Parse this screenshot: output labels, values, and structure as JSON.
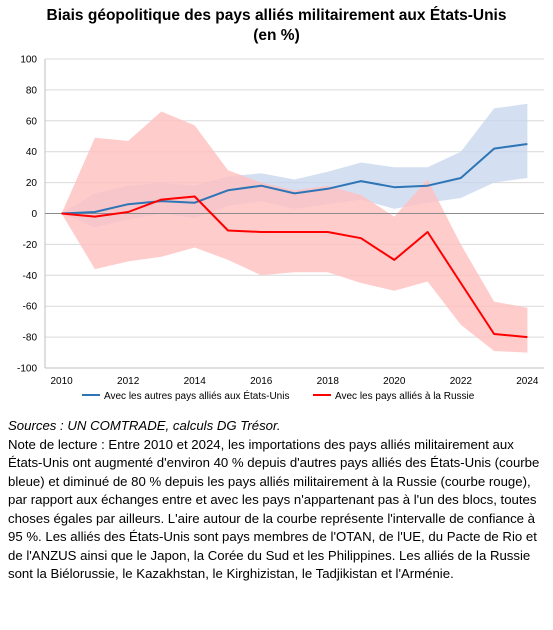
{
  "chart_data": {
    "type": "line",
    "title": "Biais géopolitique des pays alliés militairement aux États-Unis",
    "subtitle": "(en %)",
    "x": [
      2010,
      2011,
      2012,
      2013,
      2014,
      2015,
      2016,
      2017,
      2018,
      2019,
      2020,
      2021,
      2022,
      2023,
      2024
    ],
    "xticks": [
      2010,
      2012,
      2014,
      2016,
      2018,
      2020,
      2022,
      2024
    ],
    "yticks": [
      -100,
      -80,
      -60,
      -40,
      -20,
      0,
      20,
      40,
      60,
      80,
      100
    ],
    "xlim": [
      2009.5,
      2024.5
    ],
    "ylim": [
      -100,
      100
    ],
    "grid": true,
    "legend_position": "bottom",
    "series": [
      {
        "name": "Avec les autres pays alliés aux États-Unis",
        "color": "#2E75B6",
        "band_color": "#C5D5EE",
        "values": [
          0,
          1,
          6,
          8,
          7,
          15,
          18,
          13,
          16,
          21,
          17,
          18,
          23,
          42,
          45
        ],
        "upper": [
          0,
          13,
          18,
          20,
          18,
          24,
          26,
          22,
          27,
          33,
          30,
          30,
          40,
          68,
          71
        ],
        "lower": [
          0,
          -9,
          -4,
          0,
          -3,
          5,
          8,
          3,
          6,
          9,
          3,
          7,
          10,
          20,
          23
        ]
      },
      {
        "name": "Avec les pays alliés à la Russie",
        "color": "#FF0000",
        "band_color": "#FFBFBF",
        "values": [
          0,
          -2,
          1,
          9,
          11,
          -11,
          -12,
          -12,
          -12,
          -16,
          -30,
          -12,
          -45,
          -78,
          -80
        ],
        "upper": [
          0,
          49,
          47,
          66,
          57,
          28,
          20,
          15,
          18,
          12,
          -2,
          22,
          -20,
          -57,
          -61
        ],
        "lower": [
          0,
          -36,
          -31,
          -28,
          -22,
          -30,
          -40,
          -38,
          -38,
          -45,
          -50,
          -44,
          -72,
          -89,
          -90
        ]
      }
    ]
  },
  "notes": {
    "sources": "Sources : UN COMTRADE, calculs DG Trésor.",
    "body": "Note de lecture : Entre 2010 et 2024, les importations des pays alliés militairement aux États-Unis ont augmenté d'environ 40 % depuis d'autres pays alliés des États-Unis (courbe bleue) et diminué de 80 % depuis les pays alliés militairement à la Russie (courbe rouge), par rapport aux échanges entre et avec les pays n'appartenant pas à l'un des blocs, toutes choses égales par ailleurs. L'aire autour de la courbe représente l'intervalle de confiance à 95 %. Les alliés des États-Unis sont pays membres de l'OTAN, de l'UE, du Pacte de Rio et de l'ANZUS ainsi que le Japon, la Corée du Sud et les Philippines. Les alliés de la Russie sont la Biélorussie, le Kazakhstan, le Kirghizistan, le Tadjikistan et l'Arménie."
  }
}
